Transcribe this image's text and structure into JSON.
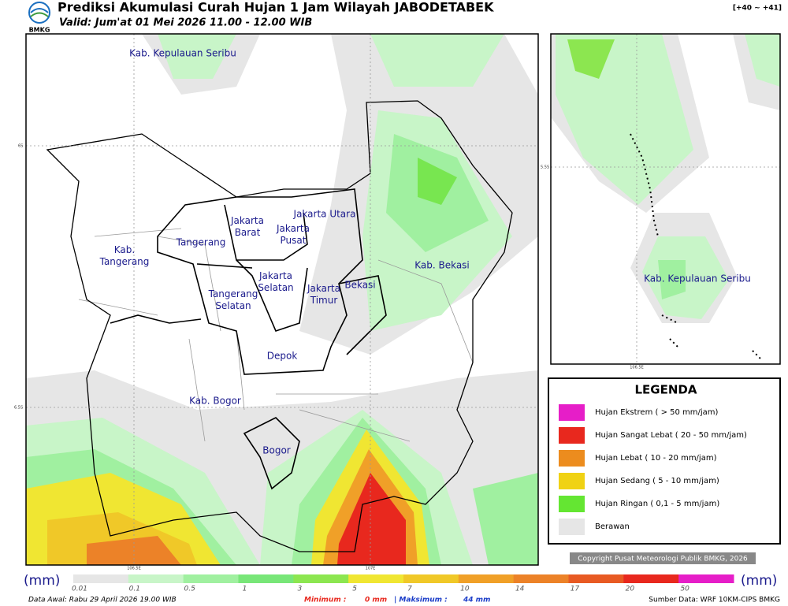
{
  "header": {
    "title": "Prediksi Akumulasi Curah Hujan 1 Jam Wilayah JABODETABEK",
    "valid": "Valid: Jum'at 01 Mei 2026 11.00 - 12.00 WIB",
    "range": "[+40 ~ +41]",
    "logo": "BMKG"
  },
  "map": {
    "labels": [
      [
        "Kab. Kepulauan Seribu"
      ],
      [
        "Jakarta Utara"
      ],
      [
        "Jakarta",
        "Barat"
      ],
      [
        "Jakarta",
        "Pusat"
      ],
      [
        "Tangerang"
      ],
      [
        "Kab.",
        "Tangerang"
      ],
      [
        "Jakarta",
        "Selatan"
      ],
      [
        "Tangerang",
        "Selatan"
      ],
      [
        "Jakarta",
        "Timur"
      ],
      [
        "Bekasi"
      ],
      [
        "Kab. Bekasi"
      ],
      [
        "Depok"
      ],
      [
        "Kab. Bogor"
      ],
      [
        "Bogor"
      ]
    ],
    "lat_ticks": [
      "6S",
      "6.5S"
    ],
    "lon_ticks": [
      "106.5E",
      "107E"
    ]
  },
  "inset": {
    "label": "Kab. Kepulauan Seribu",
    "lat_tick": "5.5S",
    "lon_tick": "106.5E"
  },
  "legend": {
    "title": "LEGENDA",
    "items": [
      {
        "label": "Hujan Ekstrem ( > 50 mm/jam)",
        "color": "#e61ec8"
      },
      {
        "label": "Hujan Sangat Lebat ( 20 - 50 mm/jam)",
        "color": "#e8281e"
      },
      {
        "label": "Hujan Lebat ( 10 - 20 mm/jam)",
        "color": "#ec8c1e"
      },
      {
        "label": "Hujan Sedang ( 5 - 10 mm/jam)",
        "color": "#f0d214"
      },
      {
        "label": "Hujan Ringan ( 0,1 - 5 mm/jam)",
        "color": "#64e632"
      },
      {
        "label": "Berawan",
        "color": "#e6e6e6"
      }
    ]
  },
  "copyright": "Copyright Pusat Meteorologi Publik BMKG, 2026",
  "colorbar": {
    "unit": "(mm)",
    "labels": [
      0.01,
      0.1,
      0.5,
      1,
      3,
      5,
      7,
      10,
      14,
      17,
      20,
      50
    ],
    "colors": [
      "#e6e6e6",
      "#c8f5c8",
      "#a0f0a0",
      "#78e678",
      "#8ce650",
      "#f0e632",
      "#f0c828",
      "#f0a028",
      "#ec8228",
      "#e85a23",
      "#e8281e",
      "#e61ec8"
    ]
  },
  "footer": {
    "data_awal": "Data Awal: Rabu 29 April 2026 19.00 WIB",
    "min_label": "Minimum :",
    "min_value": "0 mm",
    "max_label": "| Maksimum :",
    "max_value": "44 mm",
    "source": "Sumber Data: WRF 10KM-CIPS BMKG"
  }
}
